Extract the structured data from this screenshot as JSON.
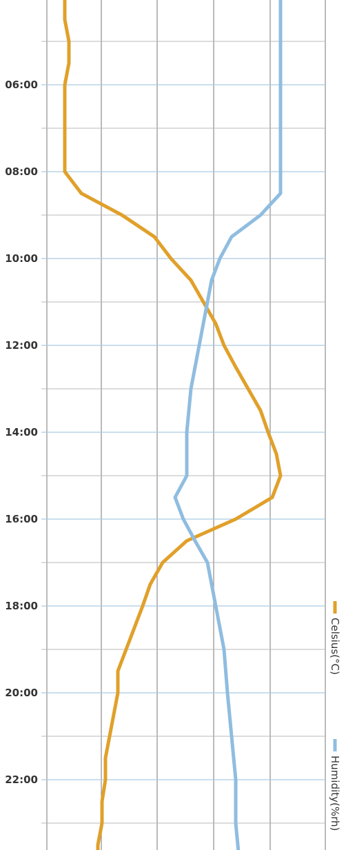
{
  "chart_data": {
    "type": "line",
    "orientation": "time axis vertical, values horizontal",
    "x_ticks": [
      "06:00",
      "08:00",
      "10:00",
      "12:00",
      "14:00",
      "16:00",
      "18:00",
      "20:00",
      "22:00"
    ],
    "time_range": [
      4.0,
      24.0
    ],
    "grid": true,
    "legend": "right side, rotated",
    "series": [
      {
        "name": "Celsius(°C)",
        "color": "#e0a02a",
        "points": [
          {
            "t": 4.0,
            "v": 0.16
          },
          {
            "t": 4.5,
            "v": 0.16
          },
          {
            "t": 5.0,
            "v": 0.17
          },
          {
            "t": 5.5,
            "v": 0.17
          },
          {
            "t": 6.0,
            "v": 0.16
          },
          {
            "t": 7.0,
            "v": 0.16
          },
          {
            "t": 8.0,
            "v": 0.16
          },
          {
            "t": 8.5,
            "v": 0.2
          },
          {
            "t": 9.0,
            "v": 0.3
          },
          {
            "t": 9.5,
            "v": 0.38
          },
          {
            "t": 10.0,
            "v": 0.42
          },
          {
            "t": 10.5,
            "v": 0.47
          },
          {
            "t": 11.0,
            "v": 0.5
          },
          {
            "t": 11.5,
            "v": 0.53
          },
          {
            "t": 12.0,
            "v": 0.55
          },
          {
            "t": 12.5,
            "v": 0.58
          },
          {
            "t": 13.0,
            "v": 0.61
          },
          {
            "t": 13.5,
            "v": 0.64
          },
          {
            "t": 14.0,
            "v": 0.66
          },
          {
            "t": 14.5,
            "v": 0.68
          },
          {
            "t": 15.0,
            "v": 0.69
          },
          {
            "t": 15.5,
            "v": 0.67
          },
          {
            "t": 16.0,
            "v": 0.58
          },
          {
            "t": 16.5,
            "v": 0.46
          },
          {
            "t": 17.0,
            "v": 0.4
          },
          {
            "t": 17.5,
            "v": 0.37
          },
          {
            "t": 18.0,
            "v": 0.35
          },
          {
            "t": 18.5,
            "v": 0.33
          },
          {
            "t": 19.0,
            "v": 0.31
          },
          {
            "t": 19.5,
            "v": 0.29
          },
          {
            "t": 20.0,
            "v": 0.29
          },
          {
            "t": 20.5,
            "v": 0.28
          },
          {
            "t": 21.0,
            "v": 0.27
          },
          {
            "t": 21.5,
            "v": 0.26
          },
          {
            "t": 22.0,
            "v": 0.26
          },
          {
            "t": 22.5,
            "v": 0.25
          },
          {
            "t": 23.0,
            "v": 0.25
          },
          {
            "t": 23.5,
            "v": 0.24
          },
          {
            "t": 24.0,
            "v": 0.24
          }
        ]
      },
      {
        "name": "Humidity(%rh)",
        "color": "#8fbde0",
        "points": [
          {
            "t": 4.0,
            "v": 0.69
          },
          {
            "t": 5.0,
            "v": 0.69
          },
          {
            "t": 6.0,
            "v": 0.69
          },
          {
            "t": 7.0,
            "v": 0.69
          },
          {
            "t": 8.0,
            "v": 0.69
          },
          {
            "t": 8.5,
            "v": 0.69
          },
          {
            "t": 9.0,
            "v": 0.64
          },
          {
            "t": 9.5,
            "v": 0.57
          },
          {
            "t": 10.0,
            "v": 0.54
          },
          {
            "t": 10.5,
            "v": 0.52
          },
          {
            "t": 11.0,
            "v": 0.51
          },
          {
            "t": 12.0,
            "v": 0.49
          },
          {
            "t": 13.0,
            "v": 0.47
          },
          {
            "t": 14.0,
            "v": 0.46
          },
          {
            "t": 15.0,
            "v": 0.46
          },
          {
            "t": 15.5,
            "v": 0.43
          },
          {
            "t": 16.0,
            "v": 0.45
          },
          {
            "t": 16.5,
            "v": 0.48
          },
          {
            "t": 17.0,
            "v": 0.51
          },
          {
            "t": 18.0,
            "v": 0.53
          },
          {
            "t": 19.0,
            "v": 0.55
          },
          {
            "t": 20.0,
            "v": 0.56
          },
          {
            "t": 21.0,
            "v": 0.57
          },
          {
            "t": 22.0,
            "v": 0.58
          },
          {
            "t": 23.0,
            "v": 0.58
          },
          {
            "t": 24.0,
            "v": 0.59
          }
        ]
      }
    ]
  }
}
